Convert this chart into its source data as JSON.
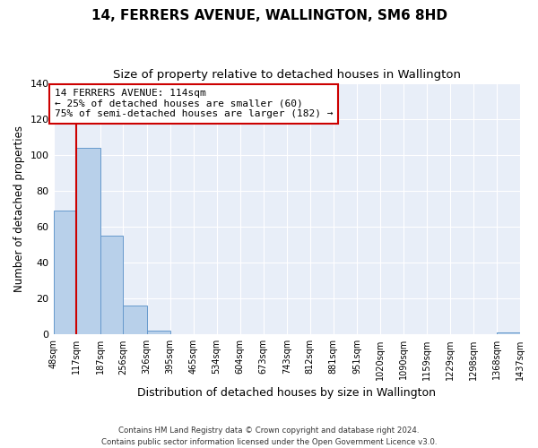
{
  "title": "14, FERRERS AVENUE, WALLINGTON, SM6 8HD",
  "subtitle": "Size of property relative to detached houses in Wallington",
  "xlabel": "Distribution of detached houses by size in Wallington",
  "ylabel": "Number of detached properties",
  "bar_values": [
    69,
    104,
    55,
    16,
    2,
    0,
    0,
    0,
    0,
    0,
    0,
    0,
    0,
    0,
    0,
    0,
    0,
    0,
    0,
    1
  ],
  "bin_edges": [
    48,
    117,
    187,
    256,
    326,
    395,
    465,
    534,
    604,
    673,
    743,
    812,
    881,
    951,
    1020,
    1090,
    1159,
    1229,
    1298,
    1368,
    1437
  ],
  "tick_labels": [
    "48sqm",
    "117sqm",
    "187sqm",
    "256sqm",
    "326sqm",
    "395sqm",
    "465sqm",
    "534sqm",
    "604sqm",
    "673sqm",
    "743sqm",
    "812sqm",
    "881sqm",
    "951sqm",
    "1020sqm",
    "1090sqm",
    "1159sqm",
    "1229sqm",
    "1298sqm",
    "1368sqm",
    "1437sqm"
  ],
  "bar_color": "#b8d0ea",
  "bar_edge_color": "#6699cc",
  "background_color": "#e8eef8",
  "grid_color": "#ffffff",
  "property_line_x": 117,
  "property_line_color": "#cc0000",
  "annotation_text": "14 FERRERS AVENUE: 114sqm\n← 25% of detached houses are smaller (60)\n75% of semi-detached houses are larger (182) →",
  "annotation_box_color": "#cc0000",
  "ylim": [
    0,
    140
  ],
  "yticks": [
    0,
    20,
    40,
    60,
    80,
    100,
    120,
    140
  ],
  "footer_line1": "Contains HM Land Registry data © Crown copyright and database right 2024.",
  "footer_line2": "Contains public sector information licensed under the Open Government Licence v3.0.",
  "title_fontsize": 11,
  "subtitle_fontsize": 9.5,
  "ylabel_fontsize": 8.5,
  "xlabel_fontsize": 9,
  "tick_fontsize": 7,
  "annotation_fontsize": 8
}
